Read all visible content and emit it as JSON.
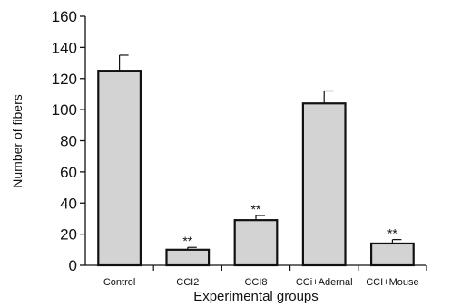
{
  "chart_data": {
    "type": "bar",
    "xlabel": "Experimental groups",
    "ylabel": "Number of fibers",
    "categories": [
      "Control",
      "CCI2",
      "CCI8",
      "CCi+Adernal",
      "CCI+Mouse"
    ],
    "values": [
      125,
      10,
      29,
      104,
      14
    ],
    "errors": [
      10,
      1.5,
      3,
      8,
      2.5
    ],
    "significance": [
      "",
      "**",
      "**",
      "",
      "**"
    ],
    "ylim": [
      0,
      160
    ],
    "yticks": [
      0,
      20,
      40,
      60,
      80,
      100,
      120,
      140,
      160
    ],
    "bar_color": "#d3d3d3",
    "grid": false,
    "legend": "none"
  }
}
